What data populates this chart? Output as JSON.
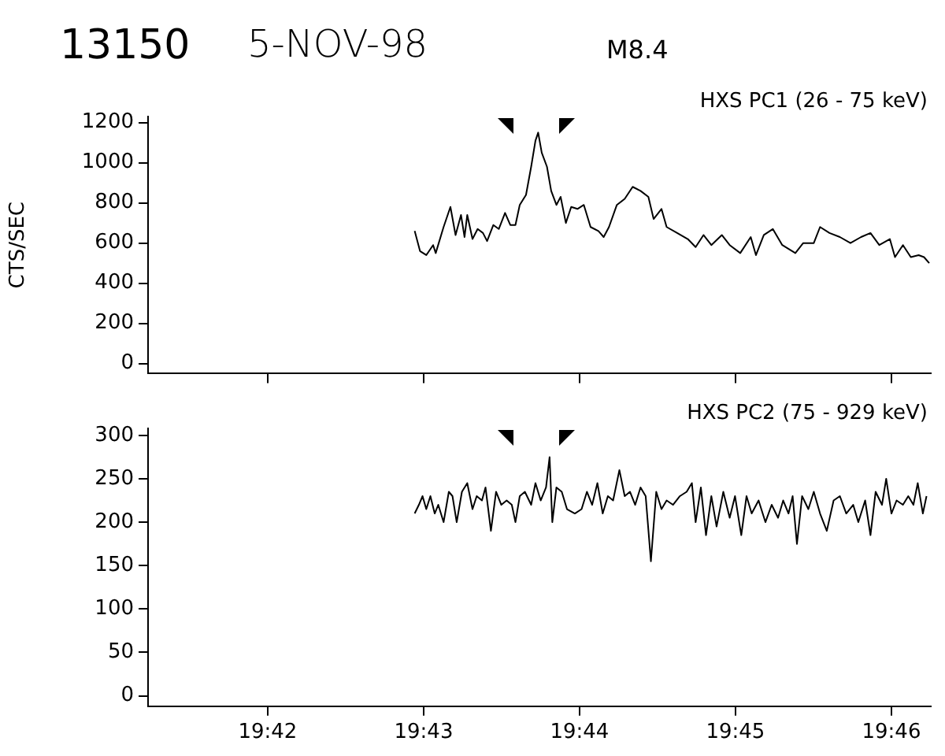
{
  "chart_data": [
    {
      "type": "line",
      "title": "13150",
      "subtitle": "5-NOV-98",
      "annotations": [
        "M8.4"
      ],
      "ylabel": "CTS/SEC",
      "marker": "none",
      "tick_labels": "y",
      "xlim": [
        19.68721,
        19.77088
      ],
      "xticks": [
        {
          "value": 19.7,
          "label": null
        },
        {
          "value": 19.71667,
          "label": null
        },
        {
          "value": 19.73333,
          "label": null
        },
        {
          "value": 19.75,
          "label": null
        },
        {
          "value": 19.76667,
          "label": null
        }
      ],
      "ylim": [
        -50,
        1230
      ],
      "yticks": [
        0,
        200,
        400,
        600,
        800,
        1000,
        1200
      ],
      "series": [
        {
          "name": "HXS PC1 (26 - 75 keV)",
          "color": "#000000",
          "x": [
            19.71571,
            19.71628,
            19.71695,
            19.71768,
            19.71796,
            19.7188,
            19.71953,
            19.72008,
            19.72066,
            19.72104,
            19.72133,
            19.72189,
            19.72244,
            19.72301,
            19.72345,
            19.72412,
            19.7247,
            19.72537,
            19.72593,
            19.72648,
            19.72694,
            19.72761,
            19.72816,
            19.72862,
            19.72891,
            19.72929,
            19.72985,
            19.7303,
            19.73086,
            19.73131,
            19.73187,
            19.73244,
            19.73311,
            19.73379,
            19.73451,
            19.73535,
            19.73591,
            19.73648,
            19.73732,
            19.73816,
            19.73901,
            19.73985,
            19.74069,
            19.74125,
            19.74209,
            19.74264,
            19.74377,
            19.7449,
            19.74574,
            19.74658,
            19.74742,
            19.74854,
            19.74938,
            19.75051,
            19.75163,
            19.75219,
            19.75303,
            19.75399,
            19.755,
            19.7564,
            19.75724,
            19.75837,
            19.75904,
            19.76005,
            19.76116,
            19.76229,
            19.76342,
            19.76443,
            19.76537,
            19.7665,
            19.76705,
            19.7679,
            19.76874,
            19.76958,
            19.77015,
            19.77071
          ],
          "values": [
            660,
            560,
            540,
            590,
            550,
            680,
            780,
            640,
            740,
            630,
            740,
            620,
            670,
            650,
            610,
            690,
            670,
            750,
            690,
            690,
            790,
            840,
            980,
            1110,
            1150,
            1050,
            980,
            860,
            790,
            830,
            700,
            780,
            770,
            790,
            680,
            660,
            630,
            680,
            790,
            820,
            880,
            860,
            830,
            720,
            770,
            680,
            650,
            620,
            580,
            640,
            590,
            640,
            590,
            550,
            630,
            540,
            640,
            670,
            590,
            550,
            600,
            600,
            680,
            650,
            630,
            600,
            630,
            650,
            590,
            620,
            530,
            590,
            530,
            540,
            530,
            500
          ]
        }
      ]
    },
    {
      "type": "line",
      "marker": "none",
      "xlim": [
        19.68721,
        19.77088
      ],
      "xticks": [
        {
          "value": 19.7,
          "label": "19:42"
        },
        {
          "value": 19.71667,
          "label": "19:43"
        },
        {
          "value": 19.73333,
          "label": "19:44"
        },
        {
          "value": 19.75,
          "label": "19:45"
        },
        {
          "value": 19.76667,
          "label": "19:46"
        }
      ],
      "ylim": [
        -12,
        308
      ],
      "yticks": [
        0,
        50,
        100,
        150,
        200,
        250,
        300
      ],
      "series": [
        {
          "name": "HXS PC2 (75 - 929 keV)",
          "color": "#000000",
          "x": [
            19.71571,
            19.71616,
            19.71655,
            19.71695,
            19.71739,
            19.71785,
            19.71823,
            19.7188,
            19.71936,
            19.71975,
            19.7202,
            19.72076,
            19.72133,
            19.72189,
            19.72234,
            19.7229,
            19.72328,
            19.72386,
            19.72441,
            19.72497,
            19.72554,
            19.72609,
            19.72648,
            19.72694,
            19.72749,
            19.72816,
            19.72862,
            19.72918,
            19.72975,
            19.73013,
            19.73042,
            19.73086,
            19.73143,
            19.73199,
            19.73283,
            19.73355,
            19.73412,
            19.73468,
            19.73524,
            19.73581,
            19.73636,
            19.73692,
            19.73759,
            19.73816,
            19.73872,
            19.73928,
            19.73985,
            19.7404,
            19.74096,
            19.74153,
            19.74209,
            19.74264,
            19.74332,
            19.74406,
            19.74478,
            19.74534,
            19.74574,
            19.7463,
            19.74685,
            19.74742,
            19.74798,
            19.7487,
            19.74938,
            19.74995,
            19.75062,
            19.75118,
            19.75173,
            19.75247,
            19.7532,
            19.75387,
            19.75455,
            19.7551,
            19.75567,
            19.75611,
            19.75657,
            19.75712,
            19.75779,
            19.75837,
            19.75904,
            19.75976,
            19.76049,
            19.76116,
            19.76184,
            19.76258,
            19.76313,
            19.76386,
            19.76443,
            19.76498,
            19.76566,
            19.76611,
            19.76667,
            19.76722,
            19.7679,
            19.76847,
            19.76902,
            19.76948,
            19.77003,
            19.77042
          ],
          "values": [
            210,
            220,
            230,
            215,
            230,
            210,
            220,
            200,
            235,
            230,
            200,
            235,
            245,
            215,
            230,
            225,
            240,
            190,
            235,
            220,
            225,
            220,
            200,
            230,
            235,
            220,
            245,
            225,
            240,
            275,
            200,
            240,
            235,
            215,
            210,
            215,
            235,
            220,
            245,
            210,
            230,
            225,
            260,
            230,
            235,
            220,
            240,
            230,
            155,
            235,
            215,
            225,
            220,
            230,
            235,
            245,
            200,
            240,
            185,
            230,
            195,
            235,
            205,
            230,
            185,
            230,
            210,
            225,
            200,
            220,
            205,
            225,
            210,
            230,
            175,
            230,
            215,
            235,
            210,
            190,
            225,
            230,
            210,
            220,
            200,
            225,
            185,
            235,
            220,
            250,
            210,
            225,
            220,
            230,
            220,
            245,
            210,
            230
          ]
        }
      ]
    }
  ]
}
